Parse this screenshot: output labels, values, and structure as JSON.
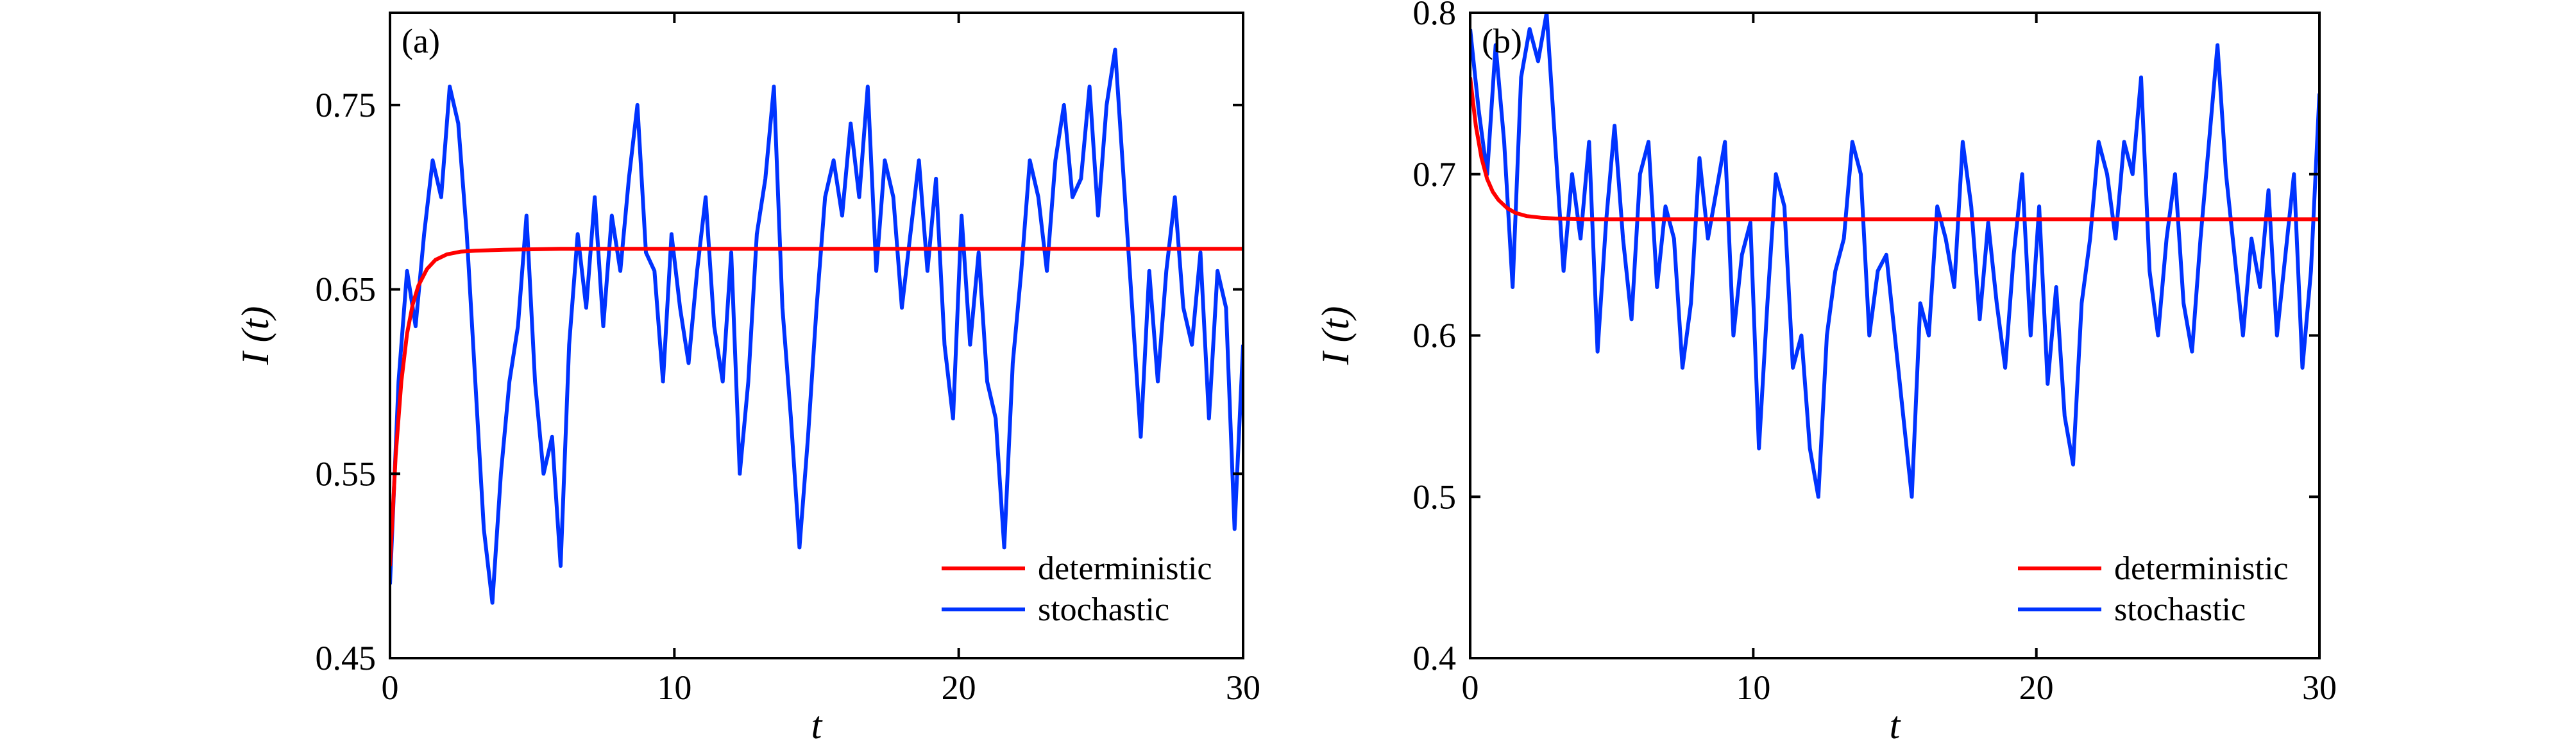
{
  "chart_data": [
    {
      "panel_label": "(a)",
      "type": "line",
      "xlabel": "t",
      "ylabel": "I (t)",
      "xlim": [
        0,
        30
      ],
      "ylim": [
        0.45,
        0.8
      ],
      "x_ticks": [
        0,
        10,
        20,
        30
      ],
      "y_ticks": [
        0.45,
        0.55,
        0.65,
        0.75
      ],
      "y_tick_labels": [
        "0.45",
        "0.55",
        "0.65",
        "0.75"
      ],
      "grid": false,
      "legend_position": "bottom-right",
      "series": [
        {
          "name": "deterministic",
          "color": "#ff0000",
          "x": [
            0,
            0.2,
            0.4,
            0.6,
            0.8,
            1.0,
            1.3,
            1.6,
            2.0,
            2.5,
            3.0,
            4.0,
            6.0,
            10.0,
            15.0,
            20.0,
            25.0,
            30.0
          ],
          "y": [
            0.5,
            0.56,
            0.6,
            0.626,
            0.642,
            0.652,
            0.661,
            0.666,
            0.669,
            0.6705,
            0.671,
            0.6715,
            0.672,
            0.672,
            0.672,
            0.672,
            0.672,
            0.672
          ]
        },
        {
          "name": "stochastic",
          "color": "#0033ff",
          "x": [
            0,
            0.3,
            0.6,
            0.9,
            1.2,
            1.5,
            1.8,
            2.1,
            2.4,
            2.7,
            3.0,
            3.3,
            3.6,
            3.9,
            4.2,
            4.5,
            4.8,
            5.1,
            5.4,
            5.7,
            6.0,
            6.3,
            6.6,
            6.9,
            7.2,
            7.5,
            7.8,
            8.1,
            8.4,
            8.7,
            9.0,
            9.3,
            9.6,
            9.9,
            10.2,
            10.5,
            10.8,
            11.1,
            11.4,
            11.7,
            12.0,
            12.3,
            12.6,
            12.9,
            13.2,
            13.5,
            13.8,
            14.1,
            14.4,
            14.7,
            15.0,
            15.3,
            15.6,
            15.9,
            16.2,
            16.5,
            16.8,
            17.1,
            17.4,
            17.7,
            18.0,
            18.3,
            18.6,
            18.9,
            19.2,
            19.5,
            19.8,
            20.1,
            20.4,
            20.7,
            21.0,
            21.3,
            21.6,
            21.9,
            22.2,
            22.5,
            22.8,
            23.1,
            23.4,
            23.7,
            24.0,
            24.3,
            24.6,
            24.9,
            25.2,
            25.5,
            25.8,
            26.1,
            26.4,
            26.7,
            27.0,
            27.3,
            27.6,
            27.9,
            28.2,
            28.5,
            28.8,
            29.1,
            29.4,
            29.7,
            30.0
          ],
          "y": [
            0.49,
            0.6,
            0.66,
            0.63,
            0.68,
            0.72,
            0.7,
            0.76,
            0.74,
            0.68,
            0.6,
            0.52,
            0.48,
            0.55,
            0.6,
            0.63,
            0.69,
            0.6,
            0.55,
            0.57,
            0.5,
            0.62,
            0.68,
            0.64,
            0.7,
            0.63,
            0.69,
            0.66,
            0.71,
            0.75,
            0.67,
            0.66,
            0.6,
            0.68,
            0.64,
            0.61,
            0.66,
            0.7,
            0.63,
            0.6,
            0.67,
            0.55,
            0.6,
            0.68,
            0.71,
            0.76,
            0.64,
            0.58,
            0.51,
            0.57,
            0.64,
            0.7,
            0.72,
            0.69,
            0.74,
            0.7,
            0.76,
            0.66,
            0.72,
            0.7,
            0.64,
            0.68,
            0.72,
            0.66,
            0.71,
            0.62,
            0.58,
            0.69,
            0.62,
            0.67,
            0.6,
            0.58,
            0.51,
            0.61,
            0.66,
            0.72,
            0.7,
            0.66,
            0.72,
            0.75,
            0.7,
            0.71,
            0.76,
            0.69,
            0.75,
            0.78,
            0.71,
            0.64,
            0.57,
            0.66,
            0.6,
            0.66,
            0.7,
            0.64,
            0.62,
            0.67,
            0.58,
            0.66,
            0.64,
            0.52,
            0.62
          ]
        }
      ]
    },
    {
      "panel_label": "(b)",
      "type": "line",
      "xlabel": "t",
      "ylabel": "I (t)",
      "xlim": [
        0,
        30
      ],
      "ylim": [
        0.4,
        0.8
      ],
      "x_ticks": [
        0,
        10,
        20,
        30
      ],
      "y_ticks": [
        0.4,
        0.5,
        0.6,
        0.7,
        0.8
      ],
      "y_tick_labels": [
        "0.4",
        "0.5",
        "0.6",
        "0.7",
        "0.8"
      ],
      "grid": false,
      "legend_position": "bottom-right",
      "series": [
        {
          "name": "deterministic",
          "color": "#ff0000",
          "x": [
            0,
            0.2,
            0.4,
            0.6,
            0.8,
            1.0,
            1.3,
            1.6,
            2.0,
            2.5,
            3.0,
            4.0,
            6.0,
            10.0,
            15.0,
            20.0,
            25.0,
            30.0
          ],
          "y": [
            0.76,
            0.73,
            0.71,
            0.697,
            0.689,
            0.684,
            0.679,
            0.676,
            0.674,
            0.673,
            0.6725,
            0.672,
            0.672,
            0.672,
            0.672,
            0.672,
            0.672,
            0.672
          ]
        },
        {
          "name": "stochastic",
          "color": "#0033ff",
          "x": [
            0,
            0.3,
            0.6,
            0.9,
            1.2,
            1.5,
            1.8,
            2.1,
            2.4,
            2.7,
            3.0,
            3.3,
            3.6,
            3.9,
            4.2,
            4.5,
            4.8,
            5.1,
            5.4,
            5.7,
            6.0,
            6.3,
            6.6,
            6.9,
            7.2,
            7.5,
            7.8,
            8.1,
            8.4,
            8.7,
            9.0,
            9.3,
            9.6,
            9.9,
            10.2,
            10.5,
            10.8,
            11.1,
            11.4,
            11.7,
            12.0,
            12.3,
            12.6,
            12.9,
            13.2,
            13.5,
            13.8,
            14.1,
            14.4,
            14.7,
            15.0,
            15.3,
            15.6,
            15.9,
            16.2,
            16.5,
            16.8,
            17.1,
            17.4,
            17.7,
            18.0,
            18.3,
            18.6,
            18.9,
            19.2,
            19.5,
            19.8,
            20.1,
            20.4,
            20.7,
            21.0,
            21.3,
            21.6,
            21.9,
            22.2,
            22.5,
            22.8,
            23.1,
            23.4,
            23.7,
            24.0,
            24.3,
            24.6,
            24.9,
            25.2,
            25.5,
            25.8,
            26.1,
            26.4,
            26.7,
            27.0,
            27.3,
            27.6,
            27.9,
            28.2,
            28.5,
            28.8,
            29.1,
            29.4,
            29.7,
            30.0
          ],
          "y": [
            0.79,
            0.74,
            0.7,
            0.78,
            0.72,
            0.63,
            0.76,
            0.79,
            0.77,
            0.8,
            0.72,
            0.64,
            0.7,
            0.66,
            0.72,
            0.59,
            0.67,
            0.73,
            0.66,
            0.61,
            0.7,
            0.72,
            0.63,
            0.68,
            0.66,
            0.58,
            0.62,
            0.71,
            0.66,
            0.69,
            0.72,
            0.6,
            0.65,
            0.67,
            0.53,
            0.62,
            0.7,
            0.68,
            0.58,
            0.6,
            0.53,
            0.5,
            0.6,
            0.64,
            0.66,
            0.72,
            0.7,
            0.6,
            0.64,
            0.65,
            0.6,
            0.55,
            0.5,
            0.62,
            0.6,
            0.68,
            0.66,
            0.63,
            0.72,
            0.68,
            0.61,
            0.67,
            0.62,
            0.58,
            0.65,
            0.7,
            0.6,
            0.68,
            0.57,
            0.63,
            0.55,
            0.52,
            0.62,
            0.66,
            0.72,
            0.7,
            0.66,
            0.72,
            0.7,
            0.76,
            0.64,
            0.6,
            0.66,
            0.7,
            0.62,
            0.59,
            0.66,
            0.72,
            0.78,
            0.7,
            0.65,
            0.6,
            0.66,
            0.63,
            0.69,
            0.6,
            0.65,
            0.7,
            0.58,
            0.64,
            0.75
          ]
        }
      ]
    }
  ]
}
